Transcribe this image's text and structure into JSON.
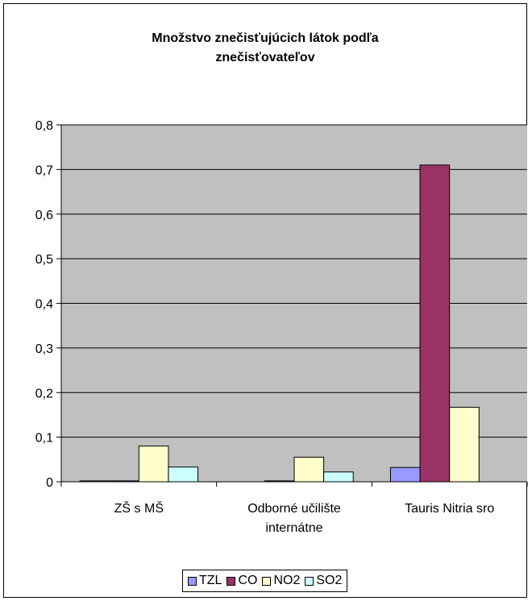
{
  "chart_data": {
    "type": "bar",
    "title": "Množstvo znečisťujúcich látok podľa znečisťovateľov",
    "title_lines": [
      "Množstvo znečisťujúcich látok podľa",
      "znečisťovateľov"
    ],
    "categories": [
      [
        "ZŠ s MŠ"
      ],
      [
        "Odborné učilište",
        "internátne"
      ],
      [
        "Tauris Nitria sro"
      ]
    ],
    "series": [
      {
        "name": "TZL",
        "color": "#9999ff",
        "values": [
          0.002,
          0.0,
          0.032
        ]
      },
      {
        "name": "CO",
        "color": "#993366",
        "values": [
          0.002,
          0.002,
          0.71
        ]
      },
      {
        "name": "NO2",
        "color": "#ffffcc",
        "values": [
          0.08,
          0.055,
          0.167
        ]
      },
      {
        "name": "SO2",
        "color": "#ccffff",
        "values": [
          0.033,
          0.022,
          0.0
        ]
      }
    ],
    "ylim": [
      0,
      0.8
    ],
    "yticks": [
      "0",
      "0,1",
      "0,2",
      "0,3",
      "0,4",
      "0,5",
      "0,6",
      "0,7",
      "0,8"
    ],
    "grid": true,
    "plot_background": "#c0c0c0",
    "legend_position": "bottom"
  }
}
